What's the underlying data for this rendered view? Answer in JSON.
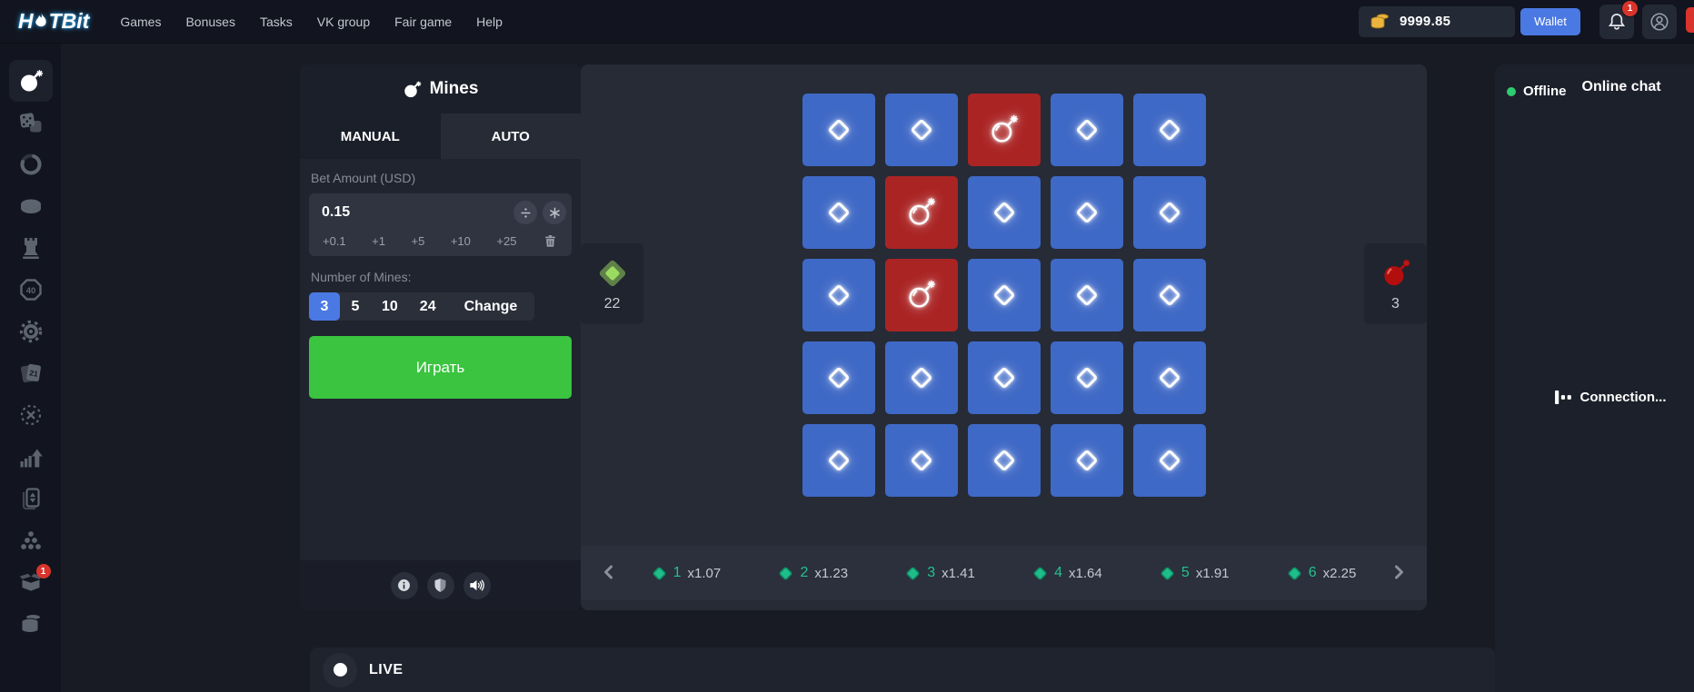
{
  "colors": {
    "accent_blue": "#4b79e4",
    "play_green": "#3ac440",
    "tile_blue": "#3f69c6",
    "tile_red": "#ab2424",
    "multiplier_teal": "#1fbd8a",
    "coin_gold": "#ecb43e",
    "notification_red": "#d8342c",
    "online_green": "#2ecc71"
  },
  "nav": {
    "logo_first": "H",
    "logo_rest": "TBit",
    "items": [
      "Games",
      "Bonuses",
      "Tasks",
      "VK group",
      "Fair game",
      "Help"
    ]
  },
  "account": {
    "balance": "9999.85",
    "wallet_label": "Wallet",
    "notifications_count": "1"
  },
  "sidebar": {
    "items": [
      {
        "icon": "bomb-icon",
        "active": true
      },
      {
        "icon": "dice-icon"
      },
      {
        "icon": "ring-icon"
      },
      {
        "icon": "coin-icon"
      },
      {
        "icon": "tower-icon"
      },
      {
        "icon": "forty-icon"
      },
      {
        "icon": "saw-icon"
      },
      {
        "icon": "cards21-icon"
      },
      {
        "icon": "circlex-icon"
      },
      {
        "icon": "chartup-icon"
      },
      {
        "icon": "cardud-icon"
      },
      {
        "icon": "pyramid-icon"
      },
      {
        "icon": "box-icon",
        "badge": "1"
      },
      {
        "icon": "stack-icon"
      }
    ]
  },
  "game_panel": {
    "title": "Mines",
    "tabs": [
      "MANUAL",
      "AUTO"
    ],
    "active_tab": "AUTO",
    "bet": {
      "label": "Bet Amount (USD)",
      "value": "0.15",
      "quick_adds": [
        "+0.1",
        "+1",
        "+5",
        "+10",
        "+25"
      ]
    },
    "mines": {
      "label": "Number of Mines:",
      "options": [
        "3",
        "5",
        "10",
        "24"
      ],
      "selected": "3",
      "change_label": "Change"
    },
    "play_label": "Играть"
  },
  "board": {
    "tiles": [
      "diamond",
      "diamond",
      "bomb",
      "diamond",
      "diamond",
      "diamond",
      "bomb",
      "diamond",
      "diamond",
      "diamond",
      "diamond",
      "bomb",
      "diamond",
      "diamond",
      "diamond",
      "diamond",
      "diamond",
      "diamond",
      "diamond",
      "diamond",
      "diamond",
      "diamond",
      "diamond",
      "diamond",
      "diamond"
    ],
    "diamonds_left": "22",
    "mines_count": "3"
  },
  "multipliers": [
    {
      "picks": "1",
      "value": "x1.07"
    },
    {
      "picks": "2",
      "value": "x1.23"
    },
    {
      "picks": "3",
      "value": "x1.41"
    },
    {
      "picks": "4",
      "value": "x1.64"
    },
    {
      "picks": "5",
      "value": "x1.91"
    },
    {
      "picks": "6",
      "value": "x2.25"
    }
  ],
  "chat": {
    "status": "Offline",
    "title": "Online chat",
    "connection": "Connection..."
  },
  "live": {
    "label": "LIVE"
  }
}
